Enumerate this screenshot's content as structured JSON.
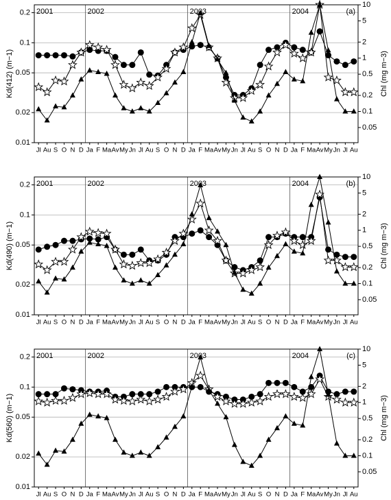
{
  "chart_data": [
    {
      "type": "line",
      "panel_label": "(a)",
      "ylabel": "Kd(412) (m−1)",
      "y2label": "Chl (mg m−3)",
      "categories": [
        "Jl",
        "Au",
        "S",
        "O",
        "N",
        "D",
        "Ja",
        "F",
        "Ma",
        "Av",
        "My",
        "Jn",
        "Jl",
        "Au",
        "S",
        "O",
        "N",
        "D",
        "Ja",
        "F",
        "Ma",
        "Av",
        "My",
        "Jn",
        "Jl",
        "Au",
        "S",
        "O",
        "N",
        "D",
        "Ja",
        "F",
        "Ma",
        "Av",
        "My",
        "Jn",
        "Jl",
        "Au"
      ],
      "year_labels": [
        "2001",
        "2002",
        "2003",
        "2004"
      ],
      "log": true,
      "grid": true,
      "ylim": [
        0.01,
        0.24
      ],
      "yticks": [
        0.01,
        0.02,
        0.05,
        0.1,
        0.2
      ],
      "y2lim": [
        0.026,
        10
      ],
      "y2ticks": [
        0.05,
        0.1,
        0.2,
        0.5,
        1,
        2,
        5,
        10
      ],
      "series": [
        {
          "marker": "circle",
          "color": "#000000",
          "values": [
            0.075,
            0.075,
            0.075,
            0.075,
            0.073,
            0.08,
            0.085,
            0.083,
            0.083,
            0.072,
            0.06,
            0.06,
            0.08,
            0.048,
            0.047,
            0.06,
            0.08,
            0.085,
            0.092,
            0.095,
            0.09,
            0.07,
            0.045,
            0.03,
            0.03,
            0.035,
            0.06,
            0.085,
            0.09,
            0.1,
            0.09,
            0.085,
            0.08,
            0.13,
            0.075,
            0.065,
            0.06,
            0.065
          ]
        },
        {
          "marker": "star",
          "color": "#000000",
          "values": [
            0.036,
            0.032,
            0.042,
            0.041,
            0.06,
            0.08,
            0.095,
            0.09,
            0.085,
            0.06,
            0.038,
            0.035,
            0.04,
            0.037,
            0.045,
            0.055,
            0.08,
            0.09,
            0.14,
            0.19,
            0.09,
            0.07,
            0.04,
            0.028,
            0.028,
            0.033,
            0.038,
            0.058,
            0.08,
            0.095,
            0.078,
            0.07,
            0.08,
            0.24,
            0.045,
            0.042,
            0.032,
            0.032
          ]
        },
        {
          "marker": "triangle",
          "color": "#000000",
          "axis": "y2",
          "values": [
            0.11,
            0.068,
            0.125,
            0.12,
            0.2,
            0.4,
            0.59,
            0.55,
            0.51,
            0.2,
            0.115,
            0.1,
            0.115,
            0.1,
            0.145,
            0.22,
            0.35,
            0.55,
            2,
            7,
            1.7,
            0.95,
            0.53,
            0.16,
            0.077,
            0.065,
            0.1,
            0.2,
            0.33,
            0.55,
            0.4,
            0.37,
            3,
            10,
            1.4,
            0.17,
            0.1,
            0.1
          ]
        }
      ]
    },
    {
      "type": "line",
      "panel_label": "(b)",
      "ylabel": "Kd(490) (m−1)",
      "y2label": "Chl (mg m−3)",
      "categories": [
        "Jl",
        "Au",
        "S",
        "O",
        "N",
        "D",
        "Ja",
        "F",
        "Ma",
        "Av",
        "My",
        "Jn",
        "Jl",
        "Au",
        "S",
        "O",
        "N",
        "D",
        "Ja",
        "F",
        "Ma",
        "Av",
        "My",
        "Jn",
        "Jl",
        "Au",
        "S",
        "O",
        "N",
        "D",
        "Ja",
        "F",
        "Ma",
        "Av",
        "My",
        "Jn",
        "Jl",
        "Au"
      ],
      "year_labels": [
        "2001",
        "2002",
        "2003",
        "2004"
      ],
      "log": true,
      "grid": true,
      "ylim": [
        0.01,
        0.24
      ],
      "yticks": [
        0.01,
        0.02,
        0.05,
        0.1,
        0.2
      ],
      "y2lim": [
        0.026,
        10
      ],
      "y2ticks": [
        0.05,
        0.1,
        0.2,
        0.5,
        1,
        2,
        5,
        10
      ],
      "series": [
        {
          "marker": "circle",
          "color": "#000000",
          "values": [
            0.045,
            0.048,
            0.05,
            0.055,
            0.055,
            0.057,
            0.058,
            0.057,
            0.06,
            0.045,
            0.04,
            0.04,
            0.045,
            0.035,
            0.035,
            0.04,
            0.06,
            0.06,
            0.065,
            0.07,
            0.06,
            0.05,
            0.035,
            0.03,
            0.028,
            0.03,
            0.035,
            0.06,
            0.06,
            0.065,
            0.06,
            0.06,
            0.06,
            0.15,
            0.045,
            0.04,
            0.038,
            0.038
          ]
        },
        {
          "marker": "star",
          "color": "#000000",
          "values": [
            0.032,
            0.028,
            0.034,
            0.034,
            0.045,
            0.06,
            0.068,
            0.066,
            0.065,
            0.045,
            0.032,
            0.031,
            0.033,
            0.033,
            0.036,
            0.042,
            0.055,
            0.065,
            0.09,
            0.13,
            0.07,
            0.055,
            0.035,
            0.026,
            0.026,
            0.028,
            0.03,
            0.05,
            0.062,
            0.067,
            0.055,
            0.05,
            0.055,
            0.16,
            0.035,
            0.035,
            0.03,
            0.03
          ]
        },
        {
          "marker": "triangle",
          "color": "#000000",
          "axis": "y2",
          "values": [
            0.11,
            0.068,
            0.125,
            0.12,
            0.2,
            0.4,
            0.59,
            0.55,
            0.51,
            0.2,
            0.115,
            0.1,
            0.115,
            0.1,
            0.145,
            0.22,
            0.35,
            0.55,
            2,
            7,
            1.7,
            0.95,
            0.53,
            0.16,
            0.077,
            0.065,
            0.1,
            0.2,
            0.33,
            0.55,
            0.4,
            0.37,
            3,
            10,
            1.4,
            0.17,
            0.1,
            0.1
          ]
        }
      ]
    },
    {
      "type": "line",
      "panel_label": "(c)",
      "ylabel": "Kd(560) (m−1)",
      "y2label": "Chl (mg m−3)",
      "categories": [
        "Jl",
        "Au",
        "S",
        "O",
        "N",
        "D",
        "Ja",
        "F",
        "Ma",
        "Av",
        "My",
        "Jn",
        "Jl",
        "Au",
        "S",
        "O",
        "N",
        "D",
        "Ja",
        "F",
        "Ma",
        "Av",
        "My",
        "Jn",
        "Jl",
        "Au",
        "S",
        "O",
        "N",
        "D",
        "Ja",
        "F",
        "Ma",
        "Av",
        "My",
        "Jn",
        "Jl",
        "Au"
      ],
      "year_labels": [
        "2001",
        "2002",
        "2003",
        "2004"
      ],
      "log": true,
      "grid": true,
      "ylim": [
        0.01,
        0.24
      ],
      "yticks": [
        0.01,
        0.02,
        0.05,
        0.1,
        0.2
      ],
      "y2lim": [
        0.026,
        10
      ],
      "y2ticks": [
        0.05,
        0.1,
        0.2,
        0.5,
        1,
        2,
        5,
        10
      ],
      "series": [
        {
          "marker": "circle",
          "color": "#000000",
          "values": [
            0.085,
            0.085,
            0.085,
            0.097,
            0.095,
            0.093,
            0.09,
            0.09,
            0.092,
            0.08,
            0.08,
            0.085,
            0.085,
            0.085,
            0.09,
            0.1,
            0.1,
            0.1,
            0.1,
            0.1,
            0.09,
            0.085,
            0.08,
            0.075,
            0.075,
            0.08,
            0.085,
            0.11,
            0.11,
            0.11,
            0.1,
            0.09,
            0.1,
            0.13,
            0.09,
            0.085,
            0.09,
            0.09
          ]
        },
        {
          "marker": "star",
          "color": "#000000",
          "values": [
            0.072,
            0.07,
            0.073,
            0.073,
            0.078,
            0.085,
            0.087,
            0.085,
            0.085,
            0.075,
            0.073,
            0.072,
            0.075,
            0.072,
            0.075,
            0.08,
            0.09,
            0.095,
            0.11,
            0.13,
            0.095,
            0.08,
            0.072,
            0.068,
            0.068,
            0.07,
            0.072,
            0.08,
            0.085,
            0.085,
            0.08,
            0.078,
            0.085,
            0.12,
            0.08,
            0.075,
            0.07,
            0.07
          ]
        },
        {
          "marker": "triangle",
          "color": "#000000",
          "axis": "y2",
          "values": [
            0.11,
            0.068,
            0.125,
            0.12,
            0.2,
            0.4,
            0.59,
            0.55,
            0.51,
            0.2,
            0.115,
            0.1,
            0.115,
            0.1,
            0.145,
            0.22,
            0.35,
            0.55,
            2,
            7,
            1.7,
            0.95,
            0.53,
            0.16,
            0.077,
            0.065,
            0.1,
            0.2,
            0.33,
            0.55,
            0.4,
            0.37,
            3,
            10,
            1.4,
            0.17,
            0.1,
            0.1
          ]
        }
      ]
    }
  ]
}
